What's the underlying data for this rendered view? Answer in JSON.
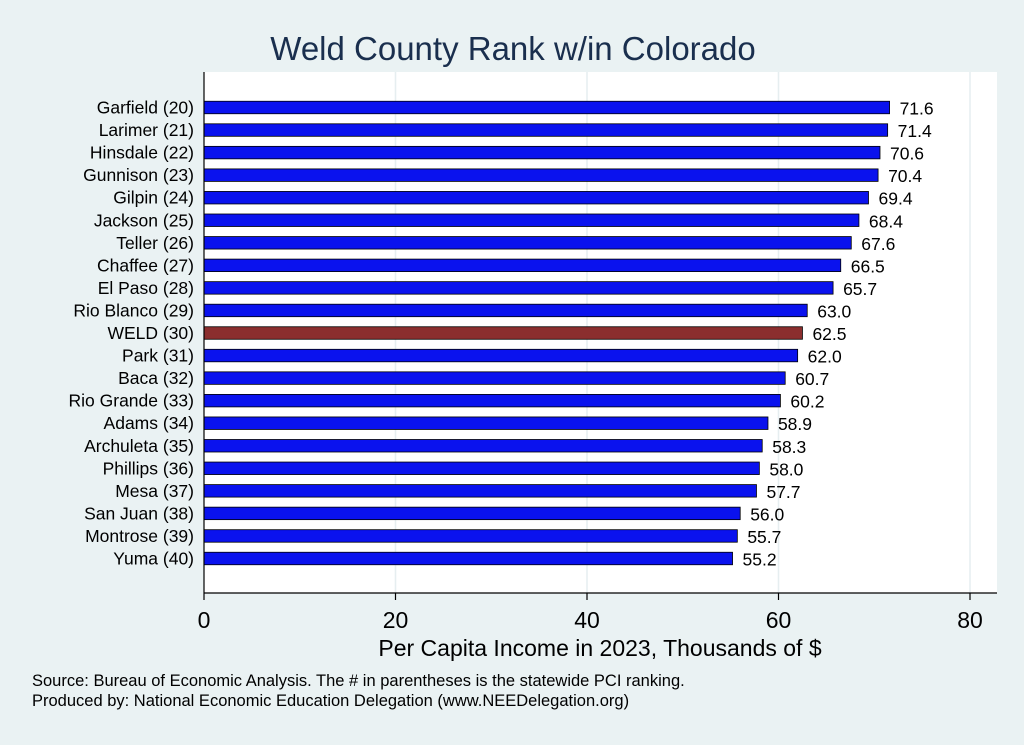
{
  "chart_data": {
    "type": "bar",
    "orientation": "horizontal",
    "title": "Weld County Rank w/in Colorado",
    "xlabel": "Per Capita Income in 2023, Thousands of $",
    "xlim": [
      0,
      82
    ],
    "xticks": [
      0,
      20,
      40,
      60,
      80
    ],
    "grid": "vertical",
    "categories": [
      "Garfield (20)",
      "Larimer (21)",
      "Hinsdale (22)",
      "Gunnison (23)",
      "Gilpin (24)",
      "Jackson (25)",
      "Teller (26)",
      "Chaffee (27)",
      "El Paso (28)",
      "Rio Blanco (29)",
      "WELD (30)",
      "Park (31)",
      "Baca (32)",
      "Rio Grande (33)",
      "Adams (34)",
      "Archuleta (35)",
      "Phillips (36)",
      "Mesa (37)",
      "San Juan (38)",
      "Montrose (39)",
      "Yuma (40)"
    ],
    "values": [
      71.6,
      71.4,
      70.6,
      70.4,
      69.4,
      68.4,
      67.6,
      66.5,
      65.7,
      63.0,
      62.5,
      62.0,
      60.7,
      60.2,
      58.9,
      58.3,
      58.0,
      57.7,
      56.0,
      55.7,
      55.2
    ],
    "value_labels": [
      "71.6",
      "71.4",
      "70.6",
      "70.4",
      "69.4",
      "68.4",
      "67.6",
      "66.5",
      "65.7",
      "63.0",
      "62.5",
      "62.0",
      "60.7",
      "60.2",
      "58.9",
      "58.3",
      "58.0",
      "57.7",
      "56.0",
      "55.7",
      "55.2"
    ],
    "highlight_index": 10,
    "colors": {
      "bar": "#0a12ee",
      "highlight": "#8b2e2e",
      "grid": "#e6eef0",
      "plot_bg": "#ffffff"
    }
  },
  "footer": {
    "source": "Source: Bureau of Economic Analysis. The # in parentheses is the statewide PCI ranking.",
    "produced": "Produced by: National Economic Education Delegation (www.NEEDelegation.org)"
  }
}
